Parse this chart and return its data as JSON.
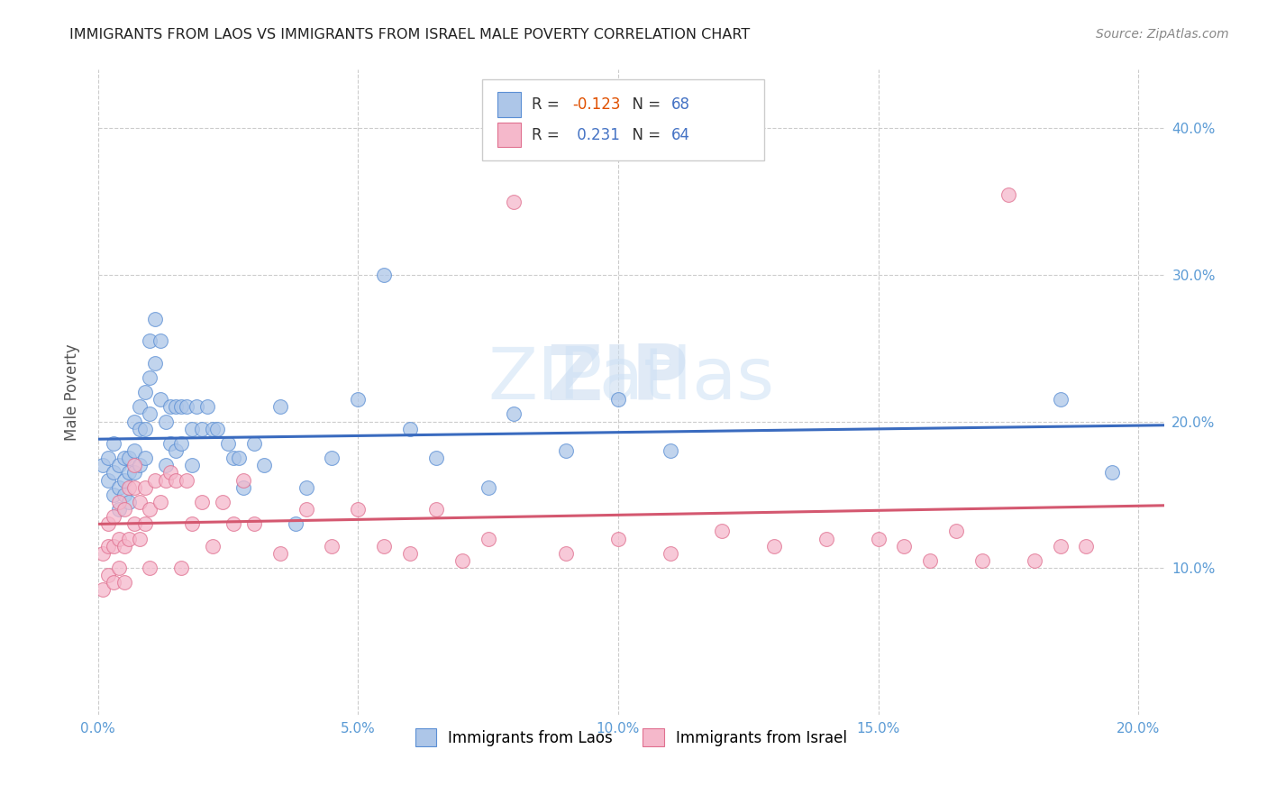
{
  "title": "IMMIGRANTS FROM LAOS VS IMMIGRANTS FROM ISRAEL MALE POVERTY CORRELATION CHART",
  "source": "Source: ZipAtlas.com",
  "ylabel_label": "Male Poverty",
  "xlim": [
    0.0,
    0.205
  ],
  "ylim": [
    0.0,
    0.44
  ],
  "watermark_top": "ZIP",
  "watermark_bot": "atlas",
  "laos_color": "#adc6e8",
  "israel_color": "#f5b8cb",
  "laos_edge_color": "#5b8fd4",
  "israel_edge_color": "#e07090",
  "laos_line_color": "#3a6bbf",
  "israel_line_color": "#d45870",
  "R_laos": -0.123,
  "N_laos": 68,
  "R_israel": 0.231,
  "N_israel": 64,
  "laos_x": [
    0.001,
    0.002,
    0.002,
    0.003,
    0.003,
    0.003,
    0.004,
    0.004,
    0.004,
    0.005,
    0.005,
    0.005,
    0.006,
    0.006,
    0.006,
    0.007,
    0.007,
    0.007,
    0.008,
    0.008,
    0.008,
    0.009,
    0.009,
    0.009,
    0.01,
    0.01,
    0.01,
    0.011,
    0.011,
    0.012,
    0.012,
    0.013,
    0.013,
    0.014,
    0.014,
    0.015,
    0.015,
    0.016,
    0.016,
    0.017,
    0.018,
    0.018,
    0.019,
    0.02,
    0.021,
    0.022,
    0.023,
    0.025,
    0.026,
    0.027,
    0.028,
    0.03,
    0.032,
    0.035,
    0.038,
    0.04,
    0.045,
    0.05,
    0.055,
    0.06,
    0.065,
    0.075,
    0.08,
    0.09,
    0.1,
    0.11,
    0.185,
    0.195
  ],
  "laos_y": [
    0.17,
    0.16,
    0.175,
    0.185,
    0.165,
    0.15,
    0.17,
    0.155,
    0.14,
    0.175,
    0.16,
    0.15,
    0.175,
    0.165,
    0.145,
    0.2,
    0.18,
    0.165,
    0.21,
    0.195,
    0.17,
    0.22,
    0.195,
    0.175,
    0.255,
    0.23,
    0.205,
    0.27,
    0.24,
    0.255,
    0.215,
    0.2,
    0.17,
    0.21,
    0.185,
    0.21,
    0.18,
    0.21,
    0.185,
    0.21,
    0.195,
    0.17,
    0.21,
    0.195,
    0.21,
    0.195,
    0.195,
    0.185,
    0.175,
    0.175,
    0.155,
    0.185,
    0.17,
    0.21,
    0.13,
    0.155,
    0.175,
    0.215,
    0.3,
    0.195,
    0.175,
    0.155,
    0.205,
    0.18,
    0.215,
    0.18,
    0.215,
    0.165
  ],
  "israel_x": [
    0.001,
    0.001,
    0.002,
    0.002,
    0.002,
    0.003,
    0.003,
    0.003,
    0.004,
    0.004,
    0.004,
    0.005,
    0.005,
    0.005,
    0.006,
    0.006,
    0.007,
    0.007,
    0.007,
    0.008,
    0.008,
    0.009,
    0.009,
    0.01,
    0.01,
    0.011,
    0.012,
    0.013,
    0.014,
    0.015,
    0.016,
    0.017,
    0.018,
    0.02,
    0.022,
    0.024,
    0.026,
    0.028,
    0.03,
    0.035,
    0.04,
    0.045,
    0.05,
    0.055,
    0.06,
    0.065,
    0.07,
    0.075,
    0.08,
    0.09,
    0.1,
    0.11,
    0.12,
    0.13,
    0.14,
    0.15,
    0.155,
    0.16,
    0.165,
    0.17,
    0.175,
    0.18,
    0.185,
    0.19
  ],
  "israel_y": [
    0.085,
    0.11,
    0.095,
    0.115,
    0.13,
    0.09,
    0.115,
    0.135,
    0.1,
    0.12,
    0.145,
    0.09,
    0.115,
    0.14,
    0.12,
    0.155,
    0.13,
    0.155,
    0.17,
    0.12,
    0.145,
    0.13,
    0.155,
    0.1,
    0.14,
    0.16,
    0.145,
    0.16,
    0.165,
    0.16,
    0.1,
    0.16,
    0.13,
    0.145,
    0.115,
    0.145,
    0.13,
    0.16,
    0.13,
    0.11,
    0.14,
    0.115,
    0.14,
    0.115,
    0.11,
    0.14,
    0.105,
    0.12,
    0.35,
    0.11,
    0.12,
    0.11,
    0.125,
    0.115,
    0.12,
    0.12,
    0.115,
    0.105,
    0.125,
    0.105,
    0.355,
    0.105,
    0.115,
    0.115
  ]
}
